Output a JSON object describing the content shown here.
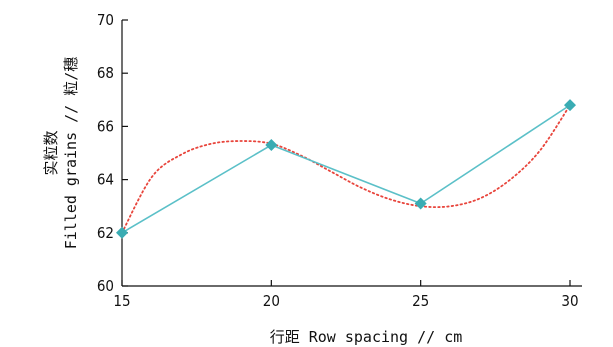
{
  "chart_data": {
    "type": "line",
    "xlabel": "行距 Row spacing // cm",
    "ylabel_cn": "实粒数",
    "ylabel_en": "Filled grains // 粒/穗",
    "xlim": [
      15,
      30
    ],
    "ylim": [
      60,
      70
    ],
    "xticks": [
      15,
      20,
      25,
      30
    ],
    "yticks": [
      60,
      62,
      64,
      66,
      68,
      70
    ],
    "series": [
      {
        "style": "solid-with-diamond-markers",
        "color": "#5bc0c8",
        "marker_color": "#3aacb3",
        "x": [
          15,
          20,
          25,
          30
        ],
        "y": [
          62.0,
          65.3,
          63.1,
          66.8
        ]
      },
      {
        "style": "dotted-smooth-fit",
        "color": "#e8453c",
        "x": [
          15,
          16,
          17,
          18,
          19,
          20,
          21,
          22,
          23,
          24,
          25,
          26,
          27,
          28,
          29,
          30
        ],
        "y": [
          62.0,
          64.1,
          64.95,
          65.35,
          65.45,
          65.35,
          64.9,
          64.3,
          63.7,
          63.25,
          63.0,
          63.0,
          63.3,
          64.0,
          65.1,
          66.8
        ]
      }
    ]
  }
}
